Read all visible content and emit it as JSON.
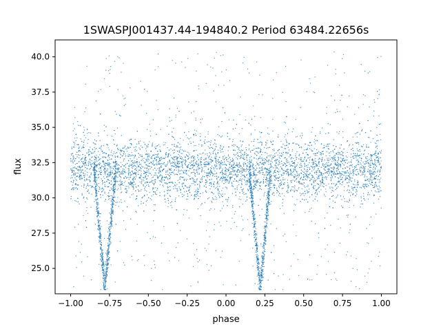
{
  "chart_data": {
    "type": "scatter",
    "title": "1SWASPJ001437.44-194840.2 Period 63484.22656s",
    "xlabel": "phase",
    "ylabel": "flux",
    "xlim": [
      -1.1,
      1.1
    ],
    "ylim": [
      23.2,
      41.2
    ],
    "xticks": [
      "−1.00",
      "−0.75",
      "−0.50",
      "−0.25",
      "0.00",
      "0.25",
      "0.50",
      "0.75",
      "1.00"
    ],
    "xtick_values": [
      -1.0,
      -0.75,
      -0.5,
      -0.25,
      0.0,
      0.25,
      0.5,
      0.75,
      1.0
    ],
    "yticks": [
      "25.0",
      "27.5",
      "30.0",
      "32.5",
      "35.0",
      "37.5",
      "40.0"
    ],
    "ytick_values": [
      25.0,
      27.5,
      30.0,
      32.5,
      35.0,
      37.5,
      40.0
    ],
    "grid": false,
    "series": [
      {
        "color": "#1f77b4",
        "phase_range": [
          -1.0,
          1.0
        ],
        "baseline_flux": 32.0,
        "baseline_band": [
          29.5,
          34.5
        ],
        "scatter_extent": [
          23.5,
          40.5
        ],
        "eclipse_centers": [
          -0.78,
          0.22
        ],
        "eclipse_min_flux": 23.6
      }
    ]
  }
}
